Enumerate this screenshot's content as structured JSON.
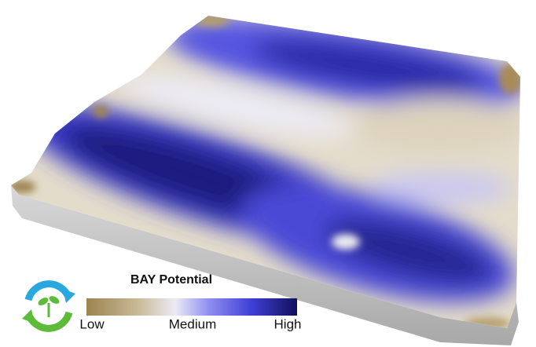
{
  "legend": {
    "title": "BAY Potential",
    "labels": [
      "Low",
      "Medium",
      "High"
    ]
  }
}
